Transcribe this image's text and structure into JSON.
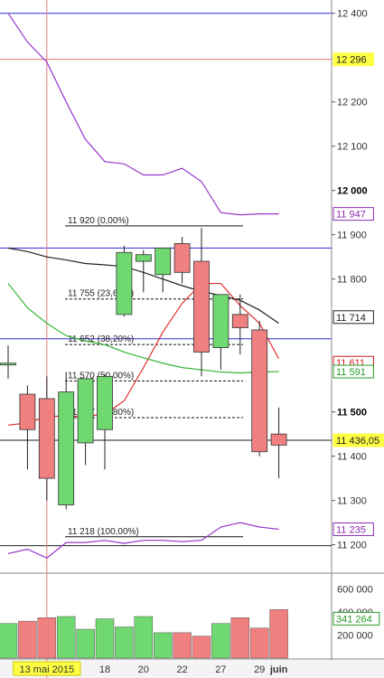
{
  "chart_data": {
    "type": "candlestick",
    "price_axis": {
      "range": [
        11140,
        12430
      ],
      "ticks": [
        {
          "label": "12 400",
          "value": 12400,
          "bold": false
        },
        {
          "label": "12 200",
          "value": 12200,
          "bold": false
        },
        {
          "label": "12 100",
          "value": 12100,
          "bold": false
        },
        {
          "label": "12 000",
          "value": 12000,
          "bold": true
        },
        {
          "label": "11 900",
          "value": 11900,
          "bold": false
        },
        {
          "label": "11 800",
          "value": 11800,
          "bold": false
        },
        {
          "label": "11 500",
          "value": 11500,
          "bold": true
        },
        {
          "label": "11 400",
          "value": 11400,
          "bold": false
        },
        {
          "label": "11 300",
          "value": 11300,
          "bold": false
        },
        {
          "label": "11 200",
          "value": 11200,
          "bold": false
        }
      ]
    },
    "volume_axis": {
      "range": [
        0,
        720000
      ],
      "ticks": [
        {
          "label": "600 000",
          "value": 600000
        },
        {
          "label": "400 000",
          "value": 400000
        },
        {
          "label": "200 000",
          "value": 200000
        }
      ]
    },
    "date_labels": [
      {
        "label": "13 mai 2015",
        "index": 2,
        "highlight": true
      },
      {
        "label": "18",
        "index": 5,
        "highlight": false
      },
      {
        "label": "20",
        "index": 7,
        "highlight": false
      },
      {
        "label": "22",
        "index": 9,
        "highlight": false
      },
      {
        "label": "27",
        "index": 11,
        "highlight": false
      },
      {
        "label": "29",
        "index": 13,
        "highlight": false
      },
      {
        "label": "juin",
        "index": 14,
        "highlight": false,
        "bold": true
      }
    ],
    "candles": [
      {
        "o": 11610,
        "h": 11650,
        "l": 11575,
        "c": 11610,
        "vol": 300000
      },
      {
        "o": 11540,
        "h": 11560,
        "l": 11370,
        "c": 11460,
        "vol": 320000
      },
      {
        "o": 11530,
        "h": 11580,
        "l": 11300,
        "c": 11350,
        "vol": 350000
      },
      {
        "o": 11290,
        "h": 11590,
        "l": 11280,
        "c": 11545,
        "vol": 360000
      },
      {
        "o": 11430,
        "h": 11570,
        "l": 11380,
        "c": 11575,
        "vol": 250000
      },
      {
        "o": 11460,
        "h": 11585,
        "l": 11370,
        "c": 11580,
        "vol": 340000
      },
      {
        "o": 11720,
        "h": 11875,
        "l": 11715,
        "c": 11860,
        "vol": 270000
      },
      {
        "o": 11840,
        "h": 11865,
        "l": 11770,
        "c": 11855,
        "vol": 360000
      },
      {
        "o": 11810,
        "h": 11870,
        "l": 11770,
        "c": 11870,
        "vol": 220000
      },
      {
        "o": 11880,
        "h": 11895,
        "l": 11790,
        "c": 11815,
        "vol": 220000
      },
      {
        "o": 11840,
        "h": 11915,
        "l": 11580,
        "c": 11635,
        "vol": 190000
      },
      {
        "o": 11645,
        "h": 11765,
        "l": 11595,
        "c": 11765,
        "vol": 300000
      },
      {
        "o": 11720,
        "h": 11765,
        "l": 11630,
        "c": 11690,
        "vol": 350000
      },
      {
        "o": 11685,
        "h": 11705,
        "l": 11400,
        "c": 11410,
        "vol": 260000
      },
      {
        "o": 11450,
        "h": 11510,
        "l": 11350,
        "c": 11425,
        "vol": 420000
      }
    ],
    "overlays": [
      {
        "name": "ma-red",
        "color": "#e03030",
        "values": [
          11470,
          11475,
          11490,
          11490,
          11490,
          11495,
          11525,
          11600,
          11680,
          11745,
          11790,
          11790,
          11740,
          11700,
          11620
        ]
      },
      {
        "name": "ma-green",
        "color": "#33b633",
        "values": [
          11790,
          11735,
          11700,
          11672,
          11660,
          11652,
          11635,
          11622,
          11610,
          11600,
          11595,
          11590,
          11588,
          11590,
          11591
        ]
      },
      {
        "name": "ma-black",
        "color": "#222222",
        "values": [
          11870,
          11862,
          11850,
          11843,
          11835,
          11832,
          11828,
          11815,
          11800,
          11785,
          11772,
          11763,
          11752,
          11730,
          11700
        ]
      },
      {
        "name": "bb-upper",
        "color": "#9933cc",
        "values": [
          12400,
          12335,
          12290,
          12200,
          12115,
          12065,
          12060,
          12035,
          12035,
          12050,
          12020,
          11950,
          11945,
          11947,
          11947
        ]
      },
      {
        "name": "bb-lower",
        "color": "#9933cc",
        "values": [
          11180,
          11190,
          11170,
          11205,
          11205,
          11210,
          11203,
          11210,
          11210,
          11207,
          11210,
          11240,
          11250,
          11240,
          11235
        ]
      }
    ],
    "horizontal_lines": [
      {
        "value": 12400,
        "color": "#2b2bd1"
      },
      {
        "value": 12296,
        "color": "#e07a7a"
      },
      {
        "value": 11870,
        "color": "#2b2bd1"
      },
      {
        "value": 11665,
        "color": "#2b2bd1"
      },
      {
        "value": 11436,
        "color": "#222222"
      },
      {
        "value": 11198,
        "color": "#222222"
      }
    ],
    "vertical_marker": {
      "index": 2,
      "color": "#e07a7a"
    },
    "fibonacci": [
      {
        "label": "11 920 (0,00%)",
        "value": 11920,
        "solid": true
      },
      {
        "label": "11 755 (23,60%)",
        "value": 11755,
        "solid": false
      },
      {
        "label": "11 652 (38,20%)",
        "value": 11652,
        "solid": false
      },
      {
        "label": "11 570 (50,00%)",
        "value": 11570,
        "solid": false
      },
      {
        "label": "11 487 (61,80%)",
        "value": 11487,
        "solid": false
      },
      {
        "label": "11 218 (100,00%)",
        "value": 11218,
        "solid": true
      }
    ],
    "price_badges": [
      {
        "label": "12 296",
        "value": 12296,
        "bg": "#ffff44",
        "fg": "#222222"
      },
      {
        "label": "11 947",
        "value": 11947,
        "bg": "#ffffff",
        "fg": "#8a2bb0",
        "border": "#8a2bb0"
      },
      {
        "label": "11 714",
        "value": 11714,
        "bg": "#ffffff",
        "fg": "#222222",
        "border": "#222222"
      },
      {
        "label": "11 611",
        "value": 11611,
        "bg": "#ffffff",
        "fg": "#d02020",
        "border": "#d02020"
      },
      {
        "label": "11 591",
        "value": 11591,
        "bg": "#ffffff",
        "fg": "#2a9a2a",
        "border": "#2a9a2a"
      },
      {
        "label": "11 436,05",
        "value": 11436,
        "bg": "#ffff44",
        "fg": "#222222"
      },
      {
        "label": "11 235",
        "value": 11235,
        "bg": "#ffffff",
        "fg": "#8a2bb0",
        "border": "#8a2bb0"
      }
    ],
    "volume_badge": {
      "label": "341 264",
      "value": 341264,
      "bg": "#ffffff",
      "fg": "#2a9a2a",
      "border": "#2a9a2a"
    },
    "colors": {
      "up": "#70d870",
      "down": "#f08080",
      "volume_up": "#70d870",
      "volume_down": "#f08080"
    }
  }
}
